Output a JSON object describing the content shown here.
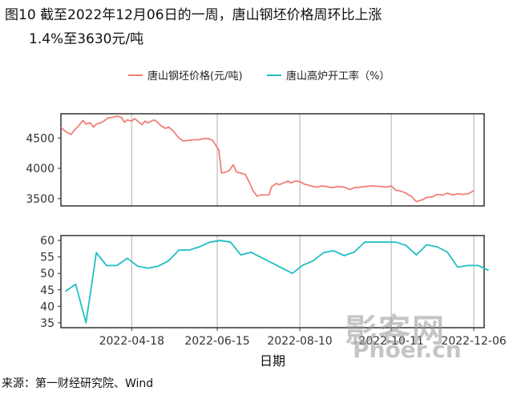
{
  "title_line1": "图10  截至2022年12月06日的一周，唐山钢坯价格周环比上涨",
  "title_line2": "1.4%至3630元/吨",
  "source": "来源：第一财经研究院、Wind",
  "watermark": "影客网",
  "watermark2": "Phoer.cn",
  "colors": {
    "series1": "#f07f78",
    "series2": "#1fbfc4",
    "grid": "#b0b0b0",
    "frame": "#000000"
  },
  "chart_data": [
    {
      "type": "line",
      "xlabel": "日期",
      "ylim": [
        3380,
        4900
      ],
      "yticks": [
        3500,
        4000,
        4500
      ],
      "xlim": [
        "2022-03-01",
        "2022-12-13"
      ],
      "xticks": [
        "2022-04-18",
        "2022-06-15",
        "2022-08-10",
        "2022-10-11",
        "2022-12-06"
      ],
      "grid": "vertical",
      "legend": "top-center",
      "series": [
        {
          "name": "唐山钢坯价格(元/吨)",
          "points": [
            [
              "2022-03-01",
              4680
            ],
            [
              "2022-03-03",
              4630
            ],
            [
              "2022-03-06",
              4580
            ],
            [
              "2022-03-08",
              4560
            ],
            [
              "2022-03-10",
              4630
            ],
            [
              "2022-03-13",
              4700
            ],
            [
              "2022-03-16",
              4790
            ],
            [
              "2022-03-18",
              4730
            ],
            [
              "2022-03-21",
              4750
            ],
            [
              "2022-03-23",
              4680
            ],
            [
              "2022-03-25",
              4730
            ],
            [
              "2022-03-28",
              4750
            ],
            [
              "2022-03-30",
              4780
            ],
            [
              "2022-04-02",
              4830
            ],
            [
              "2022-04-05",
              4840
            ],
            [
              "2022-04-08",
              4860
            ],
            [
              "2022-04-11",
              4840
            ],
            [
              "2022-04-13",
              4760
            ],
            [
              "2022-04-15",
              4800
            ],
            [
              "2022-04-18",
              4780
            ],
            [
              "2022-04-20",
              4820
            ],
            [
              "2022-04-22",
              4780
            ],
            [
              "2022-04-25",
              4720
            ],
            [
              "2022-04-27",
              4780
            ],
            [
              "2022-04-29",
              4750
            ],
            [
              "2022-05-03",
              4800
            ],
            [
              "2022-05-05",
              4770
            ],
            [
              "2022-05-08",
              4700
            ],
            [
              "2022-05-11",
              4660
            ],
            [
              "2022-05-13",
              4680
            ],
            [
              "2022-05-16",
              4620
            ],
            [
              "2022-05-18",
              4560
            ],
            [
              "2022-05-20",
              4500
            ],
            [
              "2022-05-23",
              4450
            ],
            [
              "2022-05-26",
              4460
            ],
            [
              "2022-05-30",
              4470
            ],
            [
              "2022-06-02",
              4470
            ],
            [
              "2022-06-06",
              4490
            ],
            [
              "2022-06-09",
              4490
            ],
            [
              "2022-06-12",
              4460
            ],
            [
              "2022-06-14",
              4380
            ],
            [
              "2022-06-16",
              4300
            ],
            [
              "2022-06-18",
              3920
            ],
            [
              "2022-06-21",
              3940
            ],
            [
              "2022-06-23",
              3960
            ],
            [
              "2022-06-26",
              4060
            ],
            [
              "2022-06-28",
              3940
            ],
            [
              "2022-07-01",
              3920
            ],
            [
              "2022-07-04",
              3900
            ],
            [
              "2022-07-07",
              3760
            ],
            [
              "2022-07-09",
              3640
            ],
            [
              "2022-07-12",
              3540
            ],
            [
              "2022-07-14",
              3560
            ],
            [
              "2022-07-17",
              3560
            ],
            [
              "2022-07-20",
              3560
            ],
            [
              "2022-07-22",
              3700
            ],
            [
              "2022-07-25",
              3750
            ],
            [
              "2022-07-27",
              3730
            ],
            [
              "2022-07-30",
              3760
            ],
            [
              "2022-08-02",
              3790
            ],
            [
              "2022-08-04",
              3760
            ],
            [
              "2022-08-07",
              3790
            ],
            [
              "2022-08-10",
              3780
            ],
            [
              "2022-08-13",
              3740
            ],
            [
              "2022-08-16",
              3720
            ],
            [
              "2022-08-19",
              3700
            ],
            [
              "2022-08-22",
              3690
            ],
            [
              "2022-08-25",
              3710
            ],
            [
              "2022-08-28",
              3700
            ],
            [
              "2022-09-01",
              3680
            ],
            [
              "2022-09-05",
              3700
            ],
            [
              "2022-09-09",
              3690
            ],
            [
              "2022-09-13",
              3650
            ],
            [
              "2022-09-16",
              3680
            ],
            [
              "2022-09-20",
              3690
            ],
            [
              "2022-09-24",
              3700
            ],
            [
              "2022-09-28",
              3710
            ],
            [
              "2022-10-08",
              3690
            ],
            [
              "2022-10-11",
              3710
            ],
            [
              "2022-10-14",
              3640
            ],
            [
              "2022-10-18",
              3620
            ],
            [
              "2022-10-21",
              3590
            ],
            [
              "2022-10-25",
              3530
            ],
            [
              "2022-10-28",
              3450
            ],
            [
              "2022-11-01",
              3480
            ],
            [
              "2022-11-04",
              3520
            ],
            [
              "2022-11-08",
              3530
            ],
            [
              "2022-11-11",
              3570
            ],
            [
              "2022-11-15",
              3560
            ],
            [
              "2022-11-18",
              3590
            ],
            [
              "2022-11-22",
              3560
            ],
            [
              "2022-11-25",
              3580
            ],
            [
              "2022-11-29",
              3570
            ],
            [
              "2022-12-02",
              3580
            ],
            [
              "2022-12-06",
              3630
            ]
          ]
        }
      ]
    },
    {
      "type": "line",
      "xlabel": "日期",
      "ylim": [
        33.5,
        61.5
      ],
      "yticks": [
        35,
        40,
        45,
        50,
        55,
        60
      ],
      "xlim": [
        "2022-03-01",
        "2022-12-13"
      ],
      "xticks": [
        "2022-04-18",
        "2022-06-15",
        "2022-08-10",
        "2022-10-11",
        "2022-12-06"
      ],
      "grid": "vertical",
      "series": [
        {
          "name": "唐山高炉开工率（%）",
          "points": [
            [
              "2022-03-04",
              44.5
            ],
            [
              "2022-03-11",
              46.7
            ],
            [
              "2022-03-18",
              35.0
            ],
            [
              "2022-03-25",
              56.3
            ],
            [
              "2022-04-01",
              52.4
            ],
            [
              "2022-04-08",
              52.4
            ],
            [
              "2022-04-15",
              54.6
            ],
            [
              "2022-04-22",
              52.2
            ],
            [
              "2022-04-29",
              51.6
            ],
            [
              "2022-05-06",
              52.2
            ],
            [
              "2022-05-13",
              53.8
            ],
            [
              "2022-05-20",
              57.1
            ],
            [
              "2022-05-27",
              57.1
            ],
            [
              "2022-06-03",
              58.1
            ],
            [
              "2022-06-10",
              59.5
            ],
            [
              "2022-06-17",
              60.0
            ],
            [
              "2022-06-24",
              59.5
            ],
            [
              "2022-07-01",
              55.6
            ],
            [
              "2022-07-08",
              56.4
            ],
            [
              "2022-08-05",
              50.0
            ],
            [
              "2022-08-12",
              52.5
            ],
            [
              "2022-08-19",
              53.8
            ],
            [
              "2022-08-26",
              56.3
            ],
            [
              "2022-09-02",
              56.9
            ],
            [
              "2022-09-09",
              55.4
            ],
            [
              "2022-09-16",
              56.5
            ],
            [
              "2022-09-23",
              59.5
            ],
            [
              "2022-09-30",
              59.5
            ],
            [
              "2022-10-07",
              59.5
            ],
            [
              "2022-10-14",
              59.5
            ],
            [
              "2022-10-21",
              58.5
            ],
            [
              "2022-10-28",
              55.6
            ],
            [
              "2022-11-04",
              58.7
            ],
            [
              "2022-11-11",
              58.1
            ],
            [
              "2022-11-18",
              56.5
            ],
            [
              "2022-11-25",
              51.9
            ],
            [
              "2022-12-02",
              52.4
            ],
            [
              "2022-12-09",
              52.4
            ],
            [
              "2022-12-16",
              50.9
            ]
          ]
        }
      ]
    }
  ]
}
